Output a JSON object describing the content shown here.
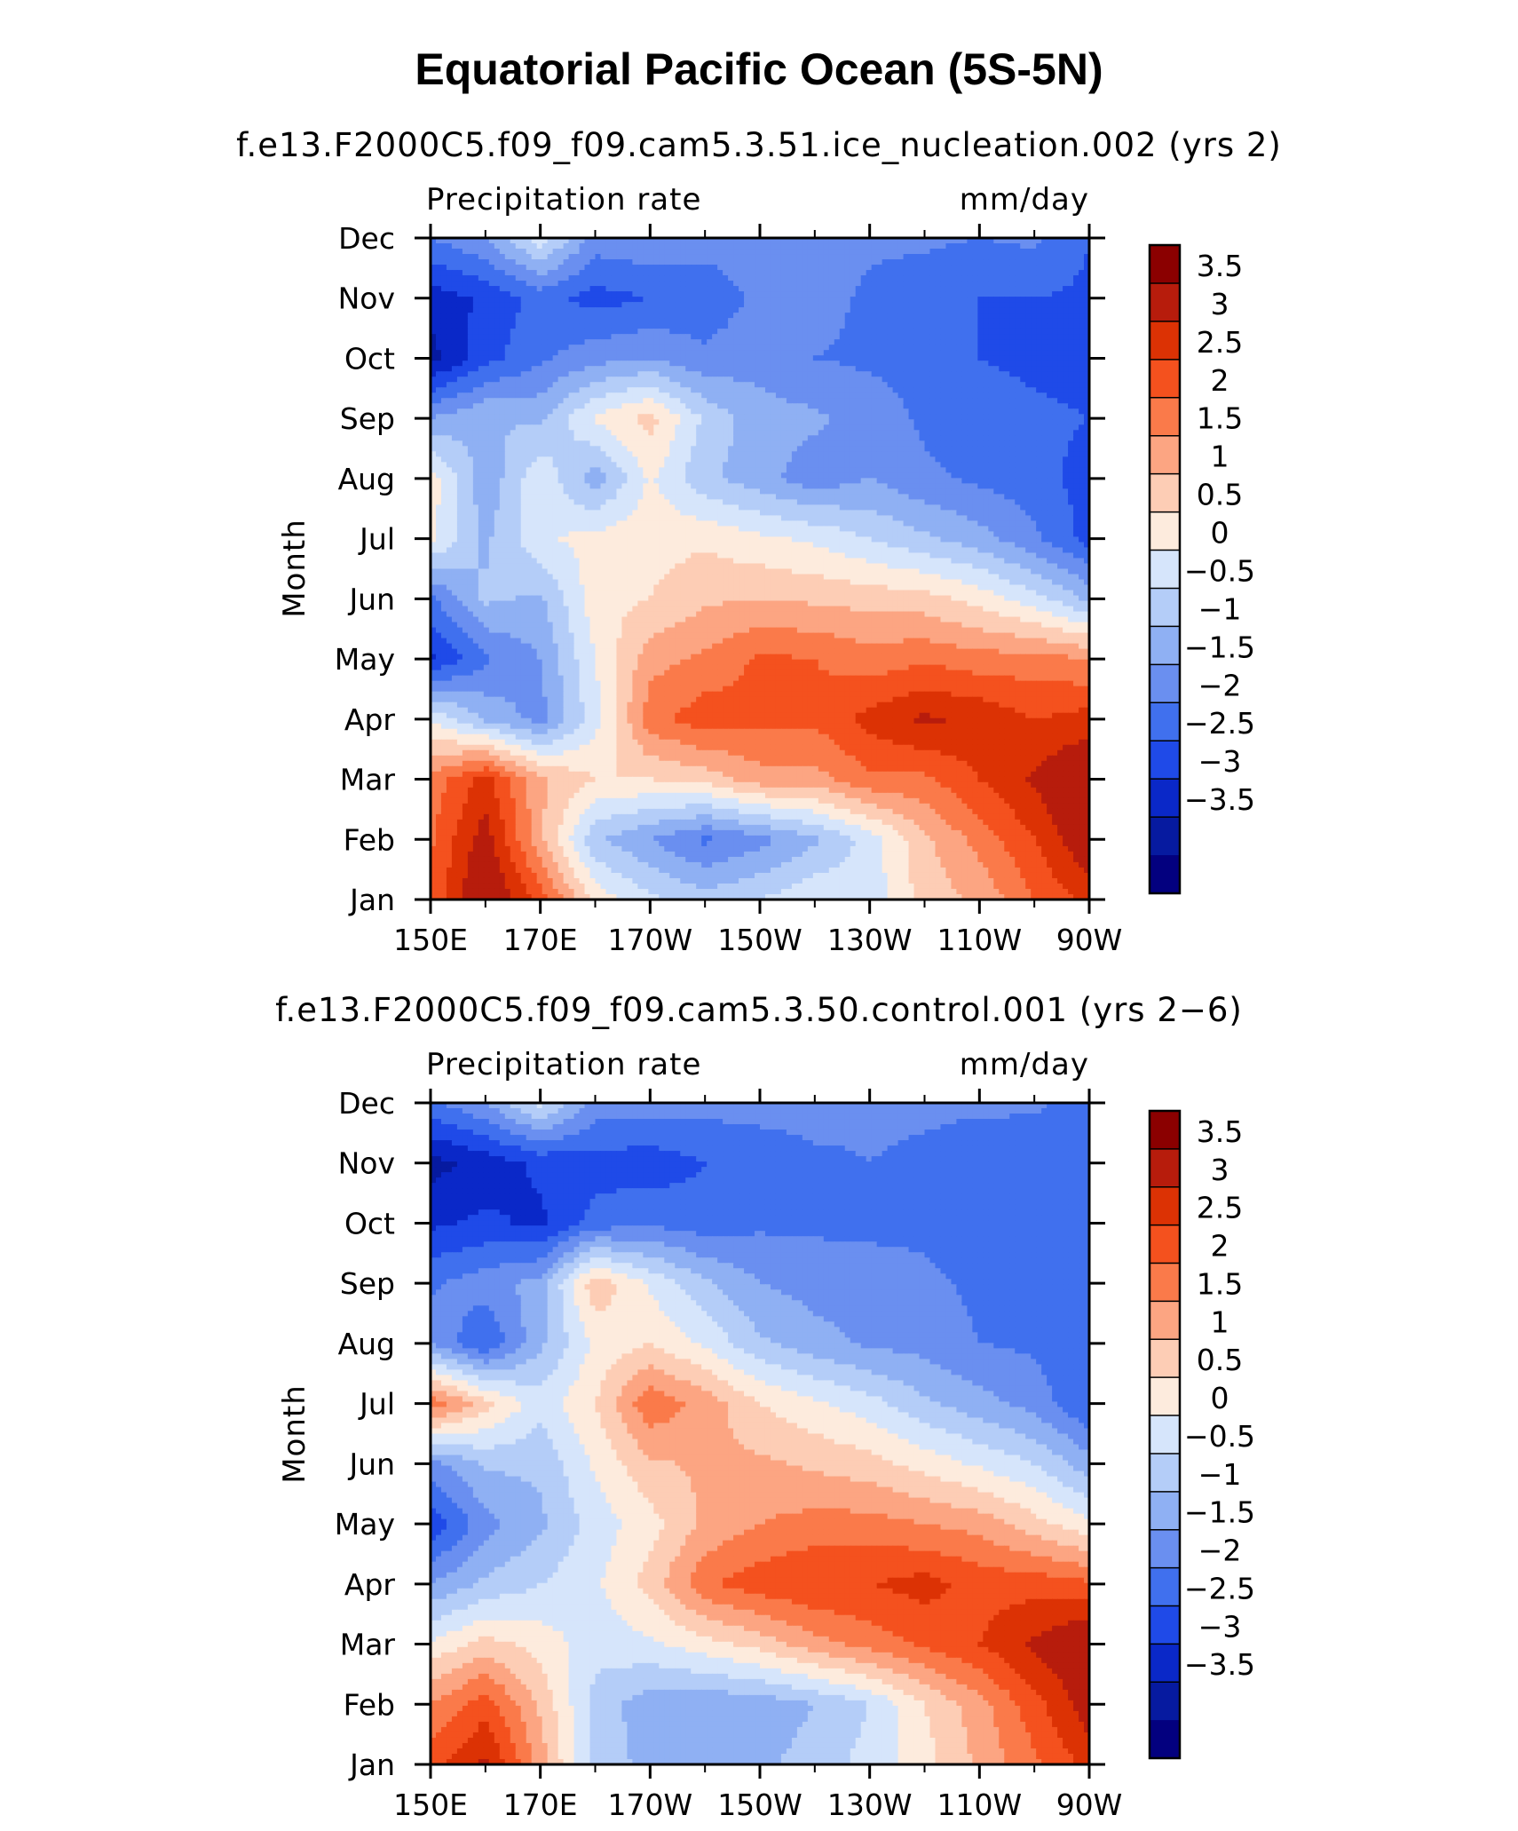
{
  "title": "Equatorial Pacific Ocean (5S-5N)",
  "panels_shared": {
    "left_label": "Precipitation rate",
    "right_label": "mm/day",
    "ylabel": "Month",
    "x_ticks": [
      "150E",
      "170E",
      "170W",
      "150W",
      "130W",
      "110W",
      "90W"
    ],
    "y_ticks": [
      "Jan",
      "Feb",
      "Mar",
      "Apr",
      "May",
      "Jun",
      "Jul",
      "Aug",
      "Sep",
      "Oct",
      "Nov",
      "Dec"
    ],
    "colorbar_labels": [
      "3.5",
      "3",
      "2.5",
      "2",
      "1.5",
      "1",
      "0.5",
      "0",
      "−0.5",
      "−1",
      "−1.5",
      "−2",
      "−2.5",
      "−3",
      "−3.5"
    ],
    "colorbar_colors": [
      "#8b0000",
      "#b71c0c",
      "#dc3204",
      "#f4511e",
      "#fa7a4a",
      "#fca582",
      "#fdcdb5",
      "#fdebdd",
      "#d6e5fb",
      "#b4cdf8",
      "#8fb0f3",
      "#6a8ff0",
      "#4070ee",
      "#1f4ae8",
      "#0a28c8",
      "#061aa0",
      "#03007f"
    ]
  },
  "chart_data": [
    {
      "type": "heatmap",
      "subtitle": "f.e13.F2000C5.f09_f09.cam5.3.51.ice_nucleation.002 (yrs 2)",
      "xlabel": "",
      "ylabel": "Month",
      "units": "mm/day",
      "x": [
        150,
        160,
        170,
        180,
        190,
        200,
        210,
        220,
        230,
        240,
        250,
        260,
        270
      ],
      "y": [
        "Jan",
        "Feb",
        "Mar",
        "Apr",
        "May",
        "Jun",
        "Jul",
        "Aug",
        "Sep",
        "Oct",
        "Nov",
        "Dec"
      ],
      "values": [
        [
          2.6,
          4.2,
          2.8,
          0.8,
          0.1,
          -0.3,
          0.0,
          0.4,
          0.2,
          1.2,
          1.6,
          2.5,
          3.2
        ],
        [
          2.4,
          3.8,
          1.6,
          -0.4,
          -1.0,
          -1.6,
          -1.2,
          -0.6,
          0.2,
          1.4,
          2.2,
          3.0,
          4.0
        ],
        [
          2.2,
          3.2,
          1.6,
          1.0,
          1.0,
          1.2,
          1.8,
          1.8,
          2.4,
          2.4,
          3.0,
          3.6,
          4.2
        ],
        [
          0.5,
          -0.6,
          -1.2,
          0.3,
          2.3,
          2.8,
          2.6,
          2.6,
          3.2,
          3.6,
          3.4,
          3.0,
          3.2
        ],
        [
          -2.6,
          -1.6,
          -1.0,
          0.5,
          1.8,
          2.1,
          2.6,
          2.5,
          2.2,
          2.4,
          2.2,
          2.2,
          2.0
        ],
        [
          -1.6,
          -0.4,
          -0.6,
          0.8,
          1.0,
          1.4,
          1.5,
          1.4,
          1.3,
          1.2,
          0.8,
          0.2,
          -0.6
        ],
        [
          0.6,
          -0.6,
          0.4,
          0.7,
          0.8,
          0.9,
          0.6,
          0.4,
          0.0,
          -0.4,
          -0.8,
          -1.4,
          -2.2
        ],
        [
          0.8,
          -0.9,
          0.4,
          -0.8,
          0.6,
          -0.4,
          -0.8,
          -1.3,
          -1.0,
          -1.4,
          -1.6,
          -1.8,
          -2.2
        ],
        [
          -1.0,
          -0.5,
          -0.6,
          0.6,
          1.2,
          -0.1,
          -0.8,
          -0.9,
          -1.2,
          -1.6,
          -1.8,
          -1.9,
          -2.0
        ],
        [
          -3.2,
          -2.2,
          -1.6,
          -1.2,
          -1.0,
          -1.4,
          -1.2,
          -1.5,
          -1.6,
          -1.7,
          -2.0,
          -2.1,
          -2.2
        ],
        [
          -2.8,
          -2.4,
          -1.8,
          -2.2,
          -2.0,
          -1.8,
          -1.4,
          -1.3,
          -1.6,
          -1.8,
          -2.0,
          -2.0,
          -2.1
        ],
        [
          -1.5,
          -1.0,
          0.3,
          -1.2,
          -1.1,
          -1.3,
          -1.2,
          -1.3,
          -1.4,
          -1.4,
          -1.5,
          -1.4,
          -2.0
        ]
      ]
    },
    {
      "type": "heatmap",
      "subtitle": "f.e13.F2000C5.f09_f09.cam5.3.50.control.001 (yrs 2−6)",
      "xlabel": "",
      "ylabel": "Month",
      "units": "mm/day",
      "x": [
        150,
        160,
        170,
        180,
        190,
        200,
        210,
        220,
        230,
        240,
        250,
        260,
        270
      ],
      "y": [
        "Jan",
        "Feb",
        "Mar",
        "Apr",
        "May",
        "Jun",
        "Jul",
        "Aug",
        "Sep",
        "Oct",
        "Nov",
        "Dec"
      ],
      "values": [
        [
          2.8,
          3.6,
          1.8,
          -0.3,
          -0.6,
          -0.8,
          -0.6,
          -0.3,
          0.2,
          0.8,
          1.6,
          2.4,
          3.2
        ],
        [
          2.0,
          2.8,
          1.4,
          -0.2,
          -0.8,
          -0.9,
          -0.8,
          -0.5,
          0.0,
          1.0,
          1.8,
          2.8,
          3.8
        ],
        [
          0.6,
          1.2,
          0.8,
          0.2,
          0.4,
          0.8,
          1.2,
          1.8,
          2.2,
          2.6,
          3.0,
          3.6,
          4.2
        ],
        [
          -1.0,
          -0.4,
          0.0,
          0.4,
          1.2,
          2.4,
          2.8,
          3.0,
          3.0,
          3.2,
          2.8,
          2.8,
          2.6
        ],
        [
          -2.4,
          -1.2,
          -0.6,
          0.2,
          0.8,
          1.6,
          2.0,
          2.2,
          2.2,
          2.0,
          1.8,
          1.2,
          0.6
        ],
        [
          -1.2,
          -0.4,
          -0.4,
          0.6,
          1.4,
          1.6,
          1.6,
          1.4,
          1.2,
          0.8,
          0.4,
          0.0,
          -0.8
        ],
        [
          2.4,
          1.2,
          0.2,
          1.0,
          2.4,
          1.8,
          1.0,
          0.6,
          0.2,
          -0.4,
          -0.8,
          -1.2,
          -2.0
        ],
        [
          -1.0,
          -2.0,
          -0.6,
          0.6,
          1.0,
          0.4,
          -0.4,
          -0.8,
          -1.1,
          -1.2,
          -1.5,
          -1.6,
          -2.0
        ],
        [
          -1.6,
          -1.2,
          -0.8,
          1.4,
          0.4,
          -0.4,
          -1.0,
          -1.2,
          -1.3,
          -1.4,
          -1.6,
          -1.7,
          -2.0
        ],
        [
          -2.6,
          -2.4,
          -2.6,
          -1.8,
          -1.6,
          -1.8,
          -1.6,
          -1.6,
          -1.6,
          -1.6,
          -1.8,
          -1.9,
          -2.0
        ],
        [
          -3.2,
          -2.8,
          -2.4,
          -2.2,
          -2.3,
          -2.0,
          -1.8,
          -1.6,
          -1.5,
          -1.6,
          -1.8,
          -1.9,
          -2.0
        ],
        [
          -1.6,
          -1.0,
          0.2,
          -1.2,
          -1.2,
          -1.3,
          -1.3,
          -1.3,
          -1.4,
          -1.4,
          -1.4,
          -1.4,
          -1.8
        ]
      ]
    }
  ]
}
